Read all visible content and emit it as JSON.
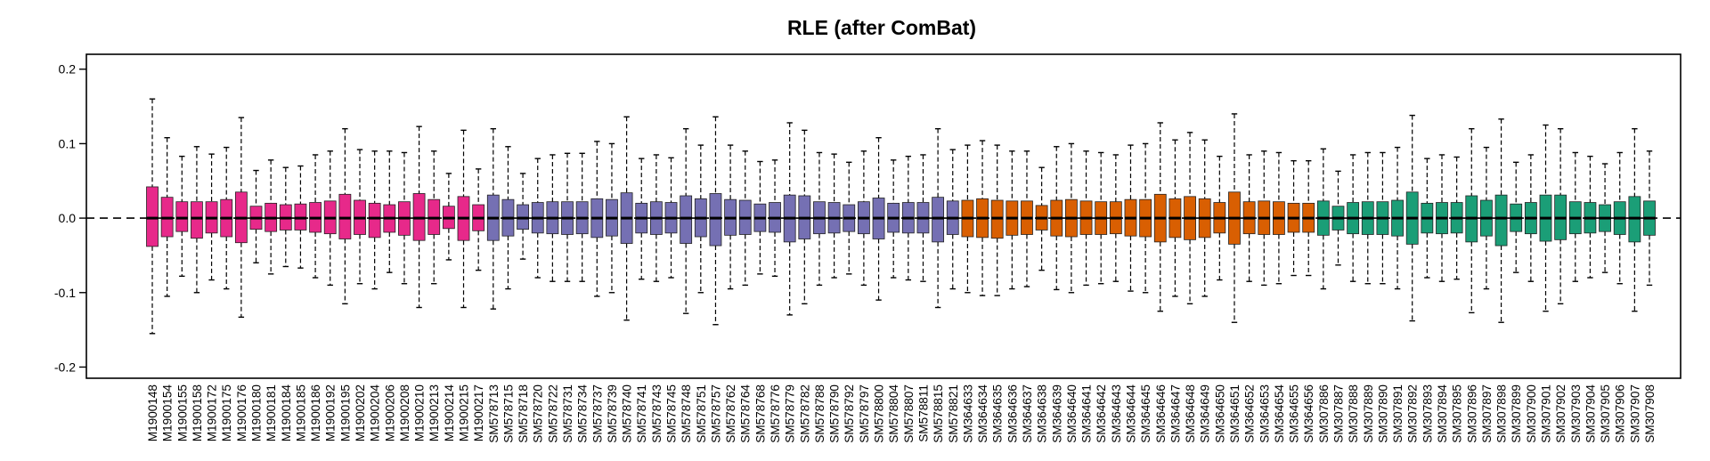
{
  "chart_data": {
    "type": "box",
    "title": "RLE (after ComBat)",
    "xlabel": "",
    "ylabel": "",
    "ylim": [
      -0.215,
      0.22
    ],
    "yticks": [
      0.2,
      0.1,
      0.0,
      -0.1,
      -0.2
    ],
    "ytick_labels": [
      "0.2",
      "0.1",
      "0.0",
      "-0.1",
      "-0.2"
    ],
    "reference_line": 0,
    "grid": false,
    "legend": "none",
    "colors": {
      "group1": "#E7298A",
      "group2": "#7570B3",
      "group3": "#D95F02",
      "group4": "#1B9E77",
      "median": "#000000",
      "whisker": "#000000"
    },
    "groups": [
      {
        "color": "group1",
        "boxes": [
          {
            "label": "M1900148",
            "lw": -0.155,
            "q1": -0.038,
            "median": 0.0,
            "q3": 0.042,
            "uw": 0.16
          },
          {
            "label": "M1900154",
            "lw": -0.105,
            "q1": -0.025,
            "median": 0.0,
            "q3": 0.028,
            "uw": 0.108
          },
          {
            "label": "M1900155",
            "lw": -0.078,
            "q1": -0.018,
            "median": 0.0,
            "q3": 0.022,
            "uw": 0.083
          },
          {
            "label": "M1900158",
            "lw": -0.1,
            "q1": -0.027,
            "median": 0.0,
            "q3": 0.022,
            "uw": 0.096
          },
          {
            "label": "M1900172",
            "lw": -0.083,
            "q1": -0.02,
            "median": 0.0,
            "q3": 0.022,
            "uw": 0.086
          },
          {
            "label": "M1900175",
            "lw": -0.095,
            "q1": -0.025,
            "median": 0.0,
            "q3": 0.025,
            "uw": 0.095
          },
          {
            "label": "M1900176",
            "lw": -0.133,
            "q1": -0.033,
            "median": 0.0,
            "q3": 0.035,
            "uw": 0.135
          },
          {
            "label": "M1900180",
            "lw": -0.06,
            "q1": -0.015,
            "median": 0.0,
            "q3": 0.016,
            "uw": 0.064
          },
          {
            "label": "M1900181",
            "lw": -0.075,
            "q1": -0.018,
            "median": 0.0,
            "q3": 0.02,
            "uw": 0.078
          },
          {
            "label": "M1900184",
            "lw": -0.065,
            "q1": -0.016,
            "median": 0.0,
            "q3": 0.018,
            "uw": 0.068
          },
          {
            "label": "M1900185",
            "lw": -0.067,
            "q1": -0.016,
            "median": 0.0,
            "q3": 0.019,
            "uw": 0.07
          },
          {
            "label": "M1900186",
            "lw": -0.08,
            "q1": -0.019,
            "median": 0.0,
            "q3": 0.021,
            "uw": 0.085
          },
          {
            "label": "M1900192",
            "lw": -0.09,
            "q1": -0.021,
            "median": 0.0,
            "q3": 0.023,
            "uw": 0.09
          },
          {
            "label": "M1900195",
            "lw": -0.115,
            "q1": -0.028,
            "median": 0.0,
            "q3": 0.032,
            "uw": 0.12
          },
          {
            "label": "M1900202",
            "lw": -0.088,
            "q1": -0.022,
            "median": 0.0,
            "q3": 0.024,
            "uw": 0.092
          },
          {
            "label": "M1900204",
            "lw": -0.095,
            "q1": -0.026,
            "median": 0.0,
            "q3": 0.02,
            "uw": 0.09
          },
          {
            "label": "M1900206",
            "lw": -0.073,
            "q1": -0.019,
            "median": 0.0,
            "q3": 0.018,
            "uw": 0.09
          },
          {
            "label": "M1900208",
            "lw": -0.088,
            "q1": -0.023,
            "median": 0.0,
            "q3": 0.022,
            "uw": 0.088
          },
          {
            "label": "M1900210",
            "lw": -0.12,
            "q1": -0.03,
            "median": 0.0,
            "q3": 0.033,
            "uw": 0.123
          },
          {
            "label": "M1900213",
            "lw": -0.088,
            "q1": -0.022,
            "median": 0.0,
            "q3": 0.025,
            "uw": 0.09
          },
          {
            "label": "M1900214",
            "lw": -0.056,
            "q1": -0.014,
            "median": 0.0,
            "q3": 0.016,
            "uw": 0.06
          },
          {
            "label": "M1900215",
            "lw": -0.12,
            "q1": -0.03,
            "median": 0.0,
            "q3": 0.029,
            "uw": 0.118
          },
          {
            "label": "M1900217",
            "lw": -0.07,
            "q1": -0.017,
            "median": 0.0,
            "q3": 0.018,
            "uw": 0.066
          }
        ]
      },
      {
        "color": "group2",
        "boxes": [
          {
            "label": "SM578713",
            "lw": -0.122,
            "q1": -0.03,
            "median": 0.0,
            "q3": 0.031,
            "uw": 0.12
          },
          {
            "label": "SM578715",
            "lw": -0.095,
            "q1": -0.024,
            "median": 0.0,
            "q3": 0.025,
            "uw": 0.096
          },
          {
            "label": "SM578718",
            "lw": -0.055,
            "q1": -0.015,
            "median": 0.0,
            "q3": 0.018,
            "uw": 0.06
          },
          {
            "label": "SM578720",
            "lw": -0.08,
            "q1": -0.02,
            "median": 0.0,
            "q3": 0.021,
            "uw": 0.08
          },
          {
            "label": "SM578722",
            "lw": -0.085,
            "q1": -0.021,
            "median": 0.0,
            "q3": 0.022,
            "uw": 0.085
          },
          {
            "label": "SM578731",
            "lw": -0.085,
            "q1": -0.022,
            "median": 0.0,
            "q3": 0.022,
            "uw": 0.087
          },
          {
            "label": "SM578734",
            "lw": -0.085,
            "q1": -0.021,
            "median": 0.0,
            "q3": 0.022,
            "uw": 0.087
          },
          {
            "label": "SM578737",
            "lw": -0.105,
            "q1": -0.026,
            "median": 0.0,
            "q3": 0.026,
            "uw": 0.103
          },
          {
            "label": "SM578739",
            "lw": -0.1,
            "q1": -0.024,
            "median": 0.0,
            "q3": 0.025,
            "uw": 0.1
          },
          {
            "label": "SM578740",
            "lw": -0.137,
            "q1": -0.034,
            "median": 0.0,
            "q3": 0.034,
            "uw": 0.136
          },
          {
            "label": "SM578741",
            "lw": -0.082,
            "q1": -0.02,
            "median": 0.0,
            "q3": 0.02,
            "uw": 0.08
          },
          {
            "label": "SM578743",
            "lw": -0.085,
            "q1": -0.022,
            "median": 0.0,
            "q3": 0.022,
            "uw": 0.085
          },
          {
            "label": "SM578745",
            "lw": -0.08,
            "q1": -0.02,
            "median": 0.0,
            "q3": 0.021,
            "uw": 0.081
          },
          {
            "label": "SM578748",
            "lw": -0.128,
            "q1": -0.034,
            "median": 0.0,
            "q3": 0.03,
            "uw": 0.12
          },
          {
            "label": "SM578751",
            "lw": -0.1,
            "q1": -0.025,
            "median": 0.0,
            "q3": 0.026,
            "uw": 0.098
          },
          {
            "label": "SM578757",
            "lw": -0.143,
            "q1": -0.037,
            "median": 0.0,
            "q3": 0.033,
            "uw": 0.136
          },
          {
            "label": "SM578762",
            "lw": -0.095,
            "q1": -0.023,
            "median": 0.0,
            "q3": 0.025,
            "uw": 0.098
          },
          {
            "label": "SM578764",
            "lw": -0.09,
            "q1": -0.022,
            "median": 0.0,
            "q3": 0.024,
            "uw": 0.09
          },
          {
            "label": "SM578768",
            "lw": -0.075,
            "q1": -0.018,
            "median": 0.0,
            "q3": 0.019,
            "uw": 0.076
          },
          {
            "label": "SM578776",
            "lw": -0.078,
            "q1": -0.019,
            "median": 0.0,
            "q3": 0.021,
            "uw": 0.078
          },
          {
            "label": "SM578779",
            "lw": -0.13,
            "q1": -0.032,
            "median": 0.0,
            "q3": 0.031,
            "uw": 0.128
          },
          {
            "label": "SM578782",
            "lw": -0.115,
            "q1": -0.028,
            "median": 0.0,
            "q3": 0.03,
            "uw": 0.118
          },
          {
            "label": "SM578788",
            "lw": -0.09,
            "q1": -0.021,
            "median": 0.0,
            "q3": 0.022,
            "uw": 0.088
          },
          {
            "label": "SM578790",
            "lw": -0.08,
            "q1": -0.02,
            "median": 0.0,
            "q3": 0.021,
            "uw": 0.086
          },
          {
            "label": "SM578792",
            "lw": -0.075,
            "q1": -0.018,
            "median": 0.0,
            "q3": 0.018,
            "uw": 0.075
          },
          {
            "label": "SM578797",
            "lw": -0.09,
            "q1": -0.021,
            "median": 0.0,
            "q3": 0.022,
            "uw": 0.09
          },
          {
            "label": "SM578800",
            "lw": -0.11,
            "q1": -0.028,
            "median": 0.0,
            "q3": 0.027,
            "uw": 0.108
          },
          {
            "label": "SM578804",
            "lw": -0.08,
            "q1": -0.019,
            "median": 0.0,
            "q3": 0.02,
            "uw": 0.078
          },
          {
            "label": "SM578807",
            "lw": -0.083,
            "q1": -0.02,
            "median": 0.0,
            "q3": 0.021,
            "uw": 0.083
          },
          {
            "label": "SM578811",
            "lw": -0.085,
            "q1": -0.02,
            "median": 0.0,
            "q3": 0.021,
            "uw": 0.085
          },
          {
            "label": "SM578815",
            "lw": -0.12,
            "q1": -0.032,
            "median": 0.0,
            "q3": 0.028,
            "uw": 0.12
          },
          {
            "label": "SM578821",
            "lw": -0.095,
            "q1": -0.022,
            "median": 0.0,
            "q3": 0.023,
            "uw": 0.092
          }
        ]
      },
      {
        "color": "group3",
        "boxes": [
          {
            "label": "SM364633",
            "lw": -0.1,
            "q1": -0.025,
            "median": 0.0,
            "q3": 0.024,
            "uw": 0.098
          },
          {
            "label": "SM364634",
            "lw": -0.104,
            "q1": -0.026,
            "median": 0.0,
            "q3": 0.026,
            "uw": 0.104
          },
          {
            "label": "SM364635",
            "lw": -0.104,
            "q1": -0.027,
            "median": 0.0,
            "q3": 0.024,
            "uw": 0.098
          },
          {
            "label": "SM364636",
            "lw": -0.095,
            "q1": -0.023,
            "median": 0.0,
            "q3": 0.023,
            "uw": 0.09
          },
          {
            "label": "SM364637",
            "lw": -0.092,
            "q1": -0.022,
            "median": 0.0,
            "q3": 0.023,
            "uw": 0.09
          },
          {
            "label": "SM364638",
            "lw": -0.07,
            "q1": -0.016,
            "median": 0.0,
            "q3": 0.017,
            "uw": 0.068
          },
          {
            "label": "SM364639",
            "lw": -0.096,
            "q1": -0.024,
            "median": 0.0,
            "q3": 0.024,
            "uw": 0.096
          },
          {
            "label": "SM364640",
            "lw": -0.1,
            "q1": -0.025,
            "median": 0.0,
            "q3": 0.025,
            "uw": 0.1
          },
          {
            "label": "SM364641",
            "lw": -0.09,
            "q1": -0.022,
            "median": 0.0,
            "q3": 0.023,
            "uw": 0.09
          },
          {
            "label": "SM364642",
            "lw": -0.088,
            "q1": -0.022,
            "median": 0.0,
            "q3": 0.022,
            "uw": 0.088
          },
          {
            "label": "SM364643",
            "lw": -0.085,
            "q1": -0.021,
            "median": 0.0,
            "q3": 0.022,
            "uw": 0.085
          },
          {
            "label": "SM364644",
            "lw": -0.098,
            "q1": -0.024,
            "median": 0.0,
            "q3": 0.025,
            "uw": 0.098
          },
          {
            "label": "SM364645",
            "lw": -0.1,
            "q1": -0.025,
            "median": 0.0,
            "q3": 0.025,
            "uw": 0.1
          },
          {
            "label": "SM364646",
            "lw": -0.125,
            "q1": -0.032,
            "median": 0.0,
            "q3": 0.032,
            "uw": 0.128
          },
          {
            "label": "SM364647",
            "lw": -0.105,
            "q1": -0.026,
            "median": 0.0,
            "q3": 0.026,
            "uw": 0.105
          },
          {
            "label": "SM364648",
            "lw": -0.115,
            "q1": -0.029,
            "median": 0.0,
            "q3": 0.029,
            "uw": 0.115
          },
          {
            "label": "SM364649",
            "lw": -0.105,
            "q1": -0.026,
            "median": 0.0,
            "q3": 0.026,
            "uw": 0.105
          },
          {
            "label": "SM364650",
            "lw": -0.083,
            "q1": -0.02,
            "median": 0.0,
            "q3": 0.021,
            "uw": 0.083
          },
          {
            "label": "SM364651",
            "lw": -0.14,
            "q1": -0.035,
            "median": 0.0,
            "q3": 0.035,
            "uw": 0.14
          },
          {
            "label": "SM364652",
            "lw": -0.085,
            "q1": -0.021,
            "median": 0.0,
            "q3": 0.022,
            "uw": 0.085
          },
          {
            "label": "SM364653",
            "lw": -0.09,
            "q1": -0.022,
            "median": 0.0,
            "q3": 0.023,
            "uw": 0.09
          },
          {
            "label": "SM364654",
            "lw": -0.088,
            "q1": -0.022,
            "median": 0.0,
            "q3": 0.022,
            "uw": 0.088
          },
          {
            "label": "SM364655",
            "lw": -0.077,
            "q1": -0.019,
            "median": 0.0,
            "q3": 0.02,
            "uw": 0.077
          },
          {
            "label": "SM364656",
            "lw": -0.077,
            "q1": -0.019,
            "median": 0.0,
            "q3": 0.02,
            "uw": 0.077
          }
        ]
      },
      {
        "color": "group4",
        "boxes": [
          {
            "label": "SM307886",
            "lw": -0.095,
            "q1": -0.023,
            "median": 0.0,
            "q3": 0.023,
            "uw": 0.093
          },
          {
            "label": "SM307887",
            "lw": -0.063,
            "q1": -0.016,
            "median": 0.0,
            "q3": 0.016,
            "uw": 0.063
          },
          {
            "label": "SM307888",
            "lw": -0.085,
            "q1": -0.021,
            "median": 0.0,
            "q3": 0.021,
            "uw": 0.085
          },
          {
            "label": "SM307889",
            "lw": -0.088,
            "q1": -0.022,
            "median": 0.0,
            "q3": 0.022,
            "uw": 0.088
          },
          {
            "label": "SM307890",
            "lw": -0.088,
            "q1": -0.022,
            "median": 0.0,
            "q3": 0.022,
            "uw": 0.088
          },
          {
            "label": "SM307891",
            "lw": -0.095,
            "q1": -0.024,
            "median": 0.0,
            "q3": 0.024,
            "uw": 0.095
          },
          {
            "label": "SM307892",
            "lw": -0.138,
            "q1": -0.035,
            "median": 0.0,
            "q3": 0.035,
            "uw": 0.138
          },
          {
            "label": "SM307893",
            "lw": -0.08,
            "q1": -0.02,
            "median": 0.0,
            "q3": 0.02,
            "uw": 0.08
          },
          {
            "label": "SM307894",
            "lw": -0.085,
            "q1": -0.021,
            "median": 0.0,
            "q3": 0.021,
            "uw": 0.085
          },
          {
            "label": "SM307895",
            "lw": -0.082,
            "q1": -0.02,
            "median": 0.0,
            "q3": 0.021,
            "uw": 0.082
          },
          {
            "label": "SM307896",
            "lw": -0.127,
            "q1": -0.032,
            "median": 0.0,
            "q3": 0.03,
            "uw": 0.12
          },
          {
            "label": "SM307897",
            "lw": -0.095,
            "q1": -0.024,
            "median": 0.0,
            "q3": 0.024,
            "uw": 0.095
          },
          {
            "label": "SM307898",
            "lw": -0.14,
            "q1": -0.037,
            "median": 0.0,
            "q3": 0.031,
            "uw": 0.133
          },
          {
            "label": "SM307899",
            "lw": -0.073,
            "q1": -0.018,
            "median": 0.0,
            "q3": 0.019,
            "uw": 0.075
          },
          {
            "label": "SM307900",
            "lw": -0.085,
            "q1": -0.021,
            "median": 0.0,
            "q3": 0.021,
            "uw": 0.085
          },
          {
            "label": "SM307901",
            "lw": -0.125,
            "q1": -0.031,
            "median": 0.0,
            "q3": 0.031,
            "uw": 0.125
          },
          {
            "label": "SM307902",
            "lw": -0.115,
            "q1": -0.029,
            "median": 0.0,
            "q3": 0.031,
            "uw": 0.12
          },
          {
            "label": "SM307903",
            "lw": -0.085,
            "q1": -0.021,
            "median": 0.0,
            "q3": 0.022,
            "uw": 0.088
          },
          {
            "label": "SM307904",
            "lw": -0.08,
            "q1": -0.02,
            "median": 0.0,
            "q3": 0.021,
            "uw": 0.083
          },
          {
            "label": "SM307905",
            "lw": -0.073,
            "q1": -0.018,
            "median": 0.0,
            "q3": 0.018,
            "uw": 0.073
          },
          {
            "label": "SM307906",
            "lw": -0.088,
            "q1": -0.022,
            "median": 0.0,
            "q3": 0.022,
            "uw": 0.088
          },
          {
            "label": "SM307907",
            "lw": -0.125,
            "q1": -0.032,
            "median": 0.0,
            "q3": 0.029,
            "uw": 0.12
          },
          {
            "label": "SM307908",
            "lw": -0.09,
            "q1": -0.023,
            "median": 0.0,
            "q3": 0.023,
            "uw": 0.09
          }
        ]
      }
    ]
  }
}
